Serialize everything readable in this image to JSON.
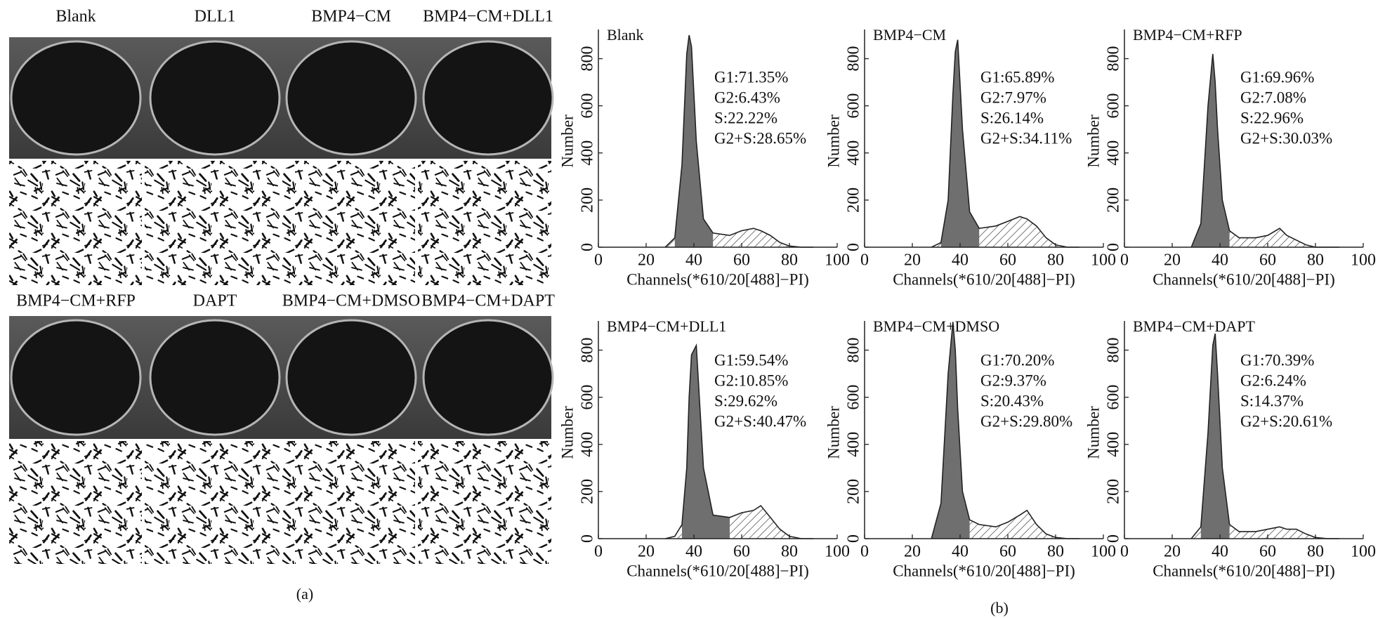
{
  "panel_a": {
    "labels_top": [
      "Blank",
      "DLL1",
      "BMP4−CM",
      "BMP4−CM+DLL1"
    ],
    "labels_bottom": [
      "BMP4−CM+RFP",
      "DAPT",
      "BMP4−CM+DMSO",
      "BMP4−CM+DAPT"
    ],
    "caption": "(a)"
  },
  "panel_b": {
    "caption": "(b)",
    "charts": [
      {
        "type": "area",
        "title": "Blank",
        "stats": [
          "G1:71.35%",
          "G2:6.43%",
          "S:22.22%",
          "G2+S:28.65%"
        ],
        "xlabel": "Channels(*610/20[488]−PI)",
        "ylabel": "Number",
        "x": [
          28,
          32,
          35,
          37,
          38,
          39,
          41,
          44,
          48,
          55,
          60,
          65,
          68,
          72,
          76,
          80,
          85,
          90
        ],
        "values": [
          0,
          40,
          350,
          820,
          900,
          850,
          450,
          120,
          60,
          50,
          70,
          80,
          70,
          50,
          20,
          5,
          0,
          0
        ],
        "xlim": [
          0,
          100
        ],
        "ylim": [
          0,
          900
        ],
        "xticks": [
          0,
          20,
          40,
          60,
          80,
          100
        ],
        "yticks": [
          0,
          200,
          400,
          600,
          800
        ]
      },
      {
        "type": "area",
        "title": "BMP4−CM",
        "stats": [
          "G1:65.89%",
          "G2:7.97%",
          "S:26.14%",
          "G2+S:34.11%"
        ],
        "xlabel": "Channels(*610/20[488]−PI)",
        "ylabel": "Number",
        "x": [
          28,
          32,
          35,
          37,
          38,
          39,
          41,
          44,
          48,
          55,
          60,
          65,
          68,
          72,
          76,
          80,
          85,
          90
        ],
        "values": [
          0,
          20,
          200,
          650,
          830,
          880,
          500,
          150,
          80,
          90,
          110,
          130,
          120,
          90,
          40,
          10,
          0,
          0
        ],
        "xlim": [
          0,
          100
        ],
        "ylim": [
          0,
          900
        ],
        "xticks": [
          0,
          20,
          40,
          60,
          80,
          100
        ],
        "yticks": [
          0,
          200,
          400,
          600,
          800
        ]
      },
      {
        "type": "area",
        "title": "BMP4−CM+RFP",
        "stats": [
          "G1:69.96%",
          "G2:7.08%",
          "S:22.96%",
          "G2+S:30.03%"
        ],
        "xlabel": "Channels(*610/20[488]−PI)",
        "ylabel": "Number",
        "x": [
          28,
          32,
          35,
          37,
          38,
          39,
          41,
          44,
          48,
          55,
          60,
          65,
          68,
          72,
          76,
          80,
          85,
          90
        ],
        "values": [
          0,
          100,
          600,
          820,
          700,
          500,
          200,
          70,
          40,
          40,
          50,
          80,
          50,
          30,
          10,
          0,
          0,
          0
        ],
        "xlim": [
          0,
          100
        ],
        "ylim": [
          0,
          900
        ],
        "xticks": [
          0,
          20,
          40,
          60,
          80,
          100
        ],
        "yticks": [
          0,
          200,
          400,
          600,
          800
        ]
      },
      {
        "type": "area",
        "title": "BMP4−CM+DLL1",
        "stats": [
          "G1:59.54%",
          "G2:10.85%",
          "S:29.62%",
          "G2+S:40.47%"
        ],
        "xlabel": "Channels(*610/20[488]−PI)",
        "ylabel": "Number",
        "x": [
          28,
          32,
          35,
          37,
          38,
          39,
          41,
          44,
          48,
          55,
          60,
          65,
          68,
          72,
          76,
          80,
          85,
          90
        ],
        "values": [
          0,
          10,
          60,
          300,
          600,
          780,
          820,
          300,
          100,
          90,
          110,
          120,
          140,
          90,
          40,
          10,
          0,
          0
        ],
        "xlim": [
          0,
          100
        ],
        "ylim": [
          0,
          900
        ],
        "xticks": [
          0,
          20,
          40,
          60,
          80,
          100
        ],
        "yticks": [
          0,
          200,
          400,
          600,
          800
        ]
      },
      {
        "type": "area",
        "title": "BMP4−CM+DMSO",
        "stats": [
          "G1:70.20%",
          "G2:9.37%",
          "S:20.43%",
          "G2+S:29.80%"
        ],
        "xlabel": "Channels(*610/20[488]−PI)",
        "ylabel": "Number",
        "x": [
          28,
          32,
          35,
          37,
          38,
          39,
          41,
          44,
          48,
          55,
          60,
          65,
          68,
          72,
          76,
          80,
          85,
          90
        ],
        "values": [
          0,
          150,
          700,
          920,
          800,
          550,
          200,
          80,
          60,
          50,
          70,
          100,
          120,
          60,
          20,
          5,
          0,
          0
        ],
        "xlim": [
          0,
          100
        ],
        "ylim": [
          0,
          900
        ],
        "xticks": [
          0,
          20,
          40,
          60,
          80,
          100
        ],
        "yticks": [
          0,
          200,
          400,
          600,
          800
        ]
      },
      {
        "type": "area",
        "title": "BMP4−CM+DAPT",
        "stats": [
          "G1:70.39%",
          "G2:6.24%",
          "S:14.37%",
          "G2+S:20.61%"
        ],
        "xlabel": "Channels(*610/20[488]−PI)",
        "ylabel": "Number",
        "x": [
          28,
          32,
          35,
          37,
          38,
          39,
          41,
          44,
          48,
          55,
          60,
          65,
          68,
          72,
          76,
          80,
          85,
          90
        ],
        "values": [
          0,
          50,
          450,
          820,
          870,
          700,
          300,
          60,
          30,
          30,
          40,
          50,
          40,
          40,
          20,
          5,
          0,
          0
        ],
        "xlim": [
          0,
          100
        ],
        "ylim": [
          0,
          900
        ],
        "xticks": [
          0,
          20,
          40,
          60,
          80,
          100
        ],
        "yticks": [
          0,
          200,
          400,
          600,
          800
        ]
      }
    ]
  }
}
